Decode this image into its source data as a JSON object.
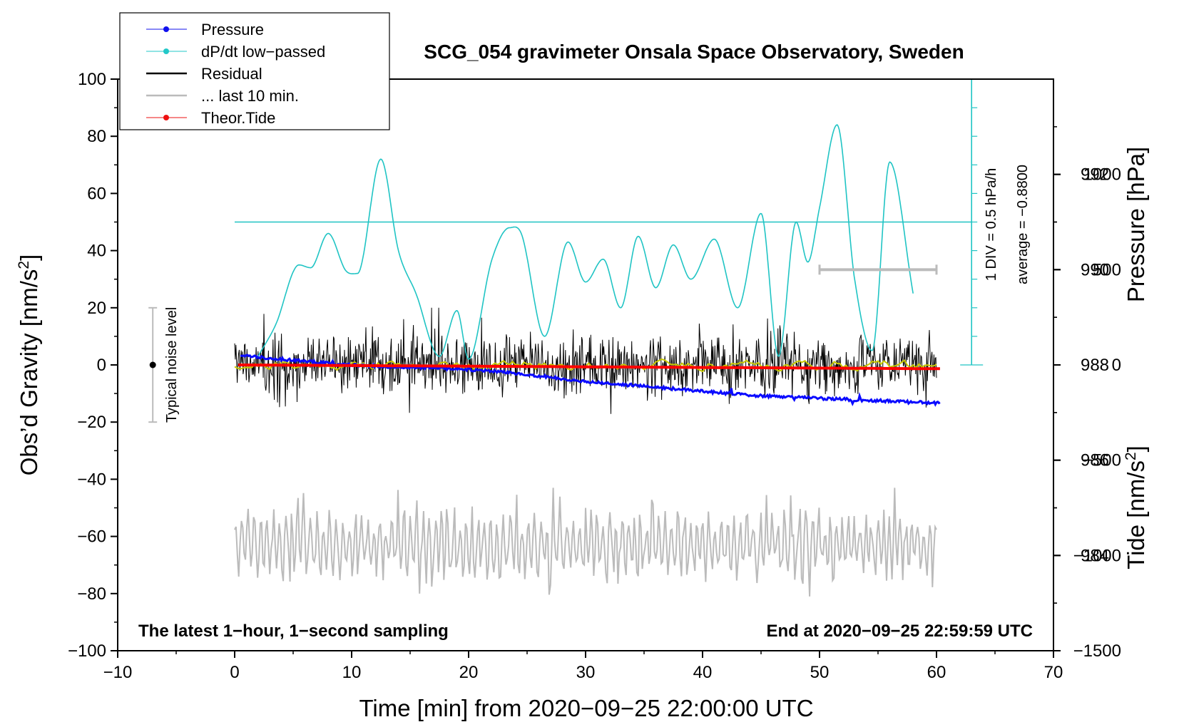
{
  "chart_data": {
    "type": "line",
    "title": "SCG_054 gravimeter Onsala Space Observatory, Sweden",
    "xlabel": "Time [min] from 2020−09−25 22:00:00 UTC",
    "ylabel_main": "Obs’d Gravity [nm/s",
    "ylabel_sup": "2",
    "ylabel_close": "]",
    "ylabel_pressure": "Pressure [hPa]",
    "ylabel_tide": "Tide [nm/s",
    "ylabel_tide_sup": "2",
    "ylabel_tide_close": "]",
    "xlim": [
      -10,
      70
    ],
    "ylim": [
      -100,
      100
    ],
    "pressure_lim": [
      982,
      994
    ],
    "tide_lim": [
      -1500,
      1500
    ],
    "x_ticks": [
      -10,
      0,
      10,
      20,
      30,
      40,
      50,
      60,
      70
    ],
    "x_tick_labels": [
      "−10",
      "0",
      "10",
      "20",
      "30",
      "40",
      "50",
      "60",
      "70"
    ],
    "y_ticks": [
      -100,
      -80,
      -60,
      -40,
      -20,
      0,
      20,
      40,
      60,
      80,
      100
    ],
    "y_tick_labels": [
      "−100",
      "−80",
      "−60",
      "−40",
      "−20",
      "0",
      "20",
      "40",
      "60",
      "80",
      "100"
    ],
    "pressure_ticks": [
      984,
      986,
      988,
      990,
      992
    ],
    "pressure_tick_labels": [
      "984",
      "986",
      "988",
      "990",
      "992"
    ],
    "tide_ticks": [
      -1500,
      -1000,
      -500,
      0,
      500,
      1000
    ],
    "tide_tick_labels": [
      "−1500",
      "−1000",
      "−500",
      "0",
      "500",
      "1000"
    ],
    "legend": [
      {
        "label": "Pressure",
        "color": "#1010ee",
        "marker": true,
        "width": 1
      },
      {
        "label": "dP/dt low−passed",
        "color": "#22c8c8",
        "marker": true,
        "width": 1
      },
      {
        "label": "Residual",
        "color": "#000000",
        "marker": false,
        "width": 2.5
      },
      {
        "label": "... last 10 min.",
        "color": "#bbbbbb",
        "marker": false,
        "width": 2.5
      },
      {
        "label": "Theor.Tide",
        "color": "#ee1010",
        "marker": true,
        "width": 1
      }
    ],
    "colors": {
      "pressure": "#0a0aff",
      "dpdt": "#20c4c4",
      "residual": "#000000",
      "residual_smooth": "#c8c800",
      "last10": "#bbbbbb",
      "tide": "#ff0000",
      "noise": "#bbbbbb"
    },
    "pressure_series": {
      "name": "Pressure",
      "x": [
        0.5,
        5,
        10,
        15,
        20,
        25,
        30,
        35,
        40,
        45,
        50,
        55,
        60.3
      ],
      "values": [
        988.2,
        988.1,
        988.0,
        987.95,
        987.9,
        987.8,
        987.65,
        987.55,
        987.45,
        987.35,
        987.3,
        987.25,
        987.2
      ]
    },
    "dpdt_series": {
      "name": "dP/dt low−passed",
      "x": [
        2,
        3.5,
        5.5,
        6.5,
        8,
        9.5,
        10.5,
        12.5,
        14,
        15.5,
        17.5,
        19,
        20,
        22,
        23.5,
        24.5,
        26.5,
        28.5,
        30,
        31.5,
        33,
        34.5,
        36,
        37.5,
        39,
        41,
        43,
        45,
        46.5,
        48,
        49,
        50,
        51.5,
        53,
        54.5,
        56,
        58
      ],
      "values": [
        3,
        14,
        35,
        34,
        46,
        33,
        32,
        72,
        40,
        25,
        3,
        19,
        2,
        37,
        48,
        46,
        10,
        43,
        29,
        37,
        20,
        45,
        27,
        42,
        30,
        44,
        20,
        53,
        3,
        50,
        36,
        55,
        84,
        30,
        5,
        71,
        25
      ]
    },
    "residual_series": {
      "name": "Residual",
      "x_range": [
        0,
        60
      ],
      "typical_range": [
        -15,
        15
      ]
    },
    "last10_series": {
      "name": "... last 10 min.",
      "x_range": [
        0,
        60
      ],
      "typical_range": [
        -80,
        -40
      ]
    },
    "tide_series": {
      "name": "Theor.Tide",
      "x": [
        0.3,
        60.3
      ],
      "values": [
        0,
        -20
      ]
    },
    "tenmin_bar": {
      "x": [
        50,
        60
      ],
      "level": 500
    },
    "dpdt_scale_bar": {
      "x": 63,
      "range": [
        0,
        100
      ],
      "ticks": [
        0,
        10,
        20,
        30,
        40,
        50,
        60,
        70,
        80,
        90,
        100
      ],
      "reference_level": 50
    },
    "noise_bar": {
      "x": -7,
      "range": [
        -20,
        20
      ],
      "center": 0
    },
    "annotations": {
      "noise": "Typical noise level",
      "div": "1 DIV = 0.5 hPa/h",
      "average": "average = −0.8800",
      "bottom_left": "The latest 1−hour, 1−second sampling",
      "bottom_right": "End at 2020−09−25 22:59:59 UTC"
    }
  }
}
